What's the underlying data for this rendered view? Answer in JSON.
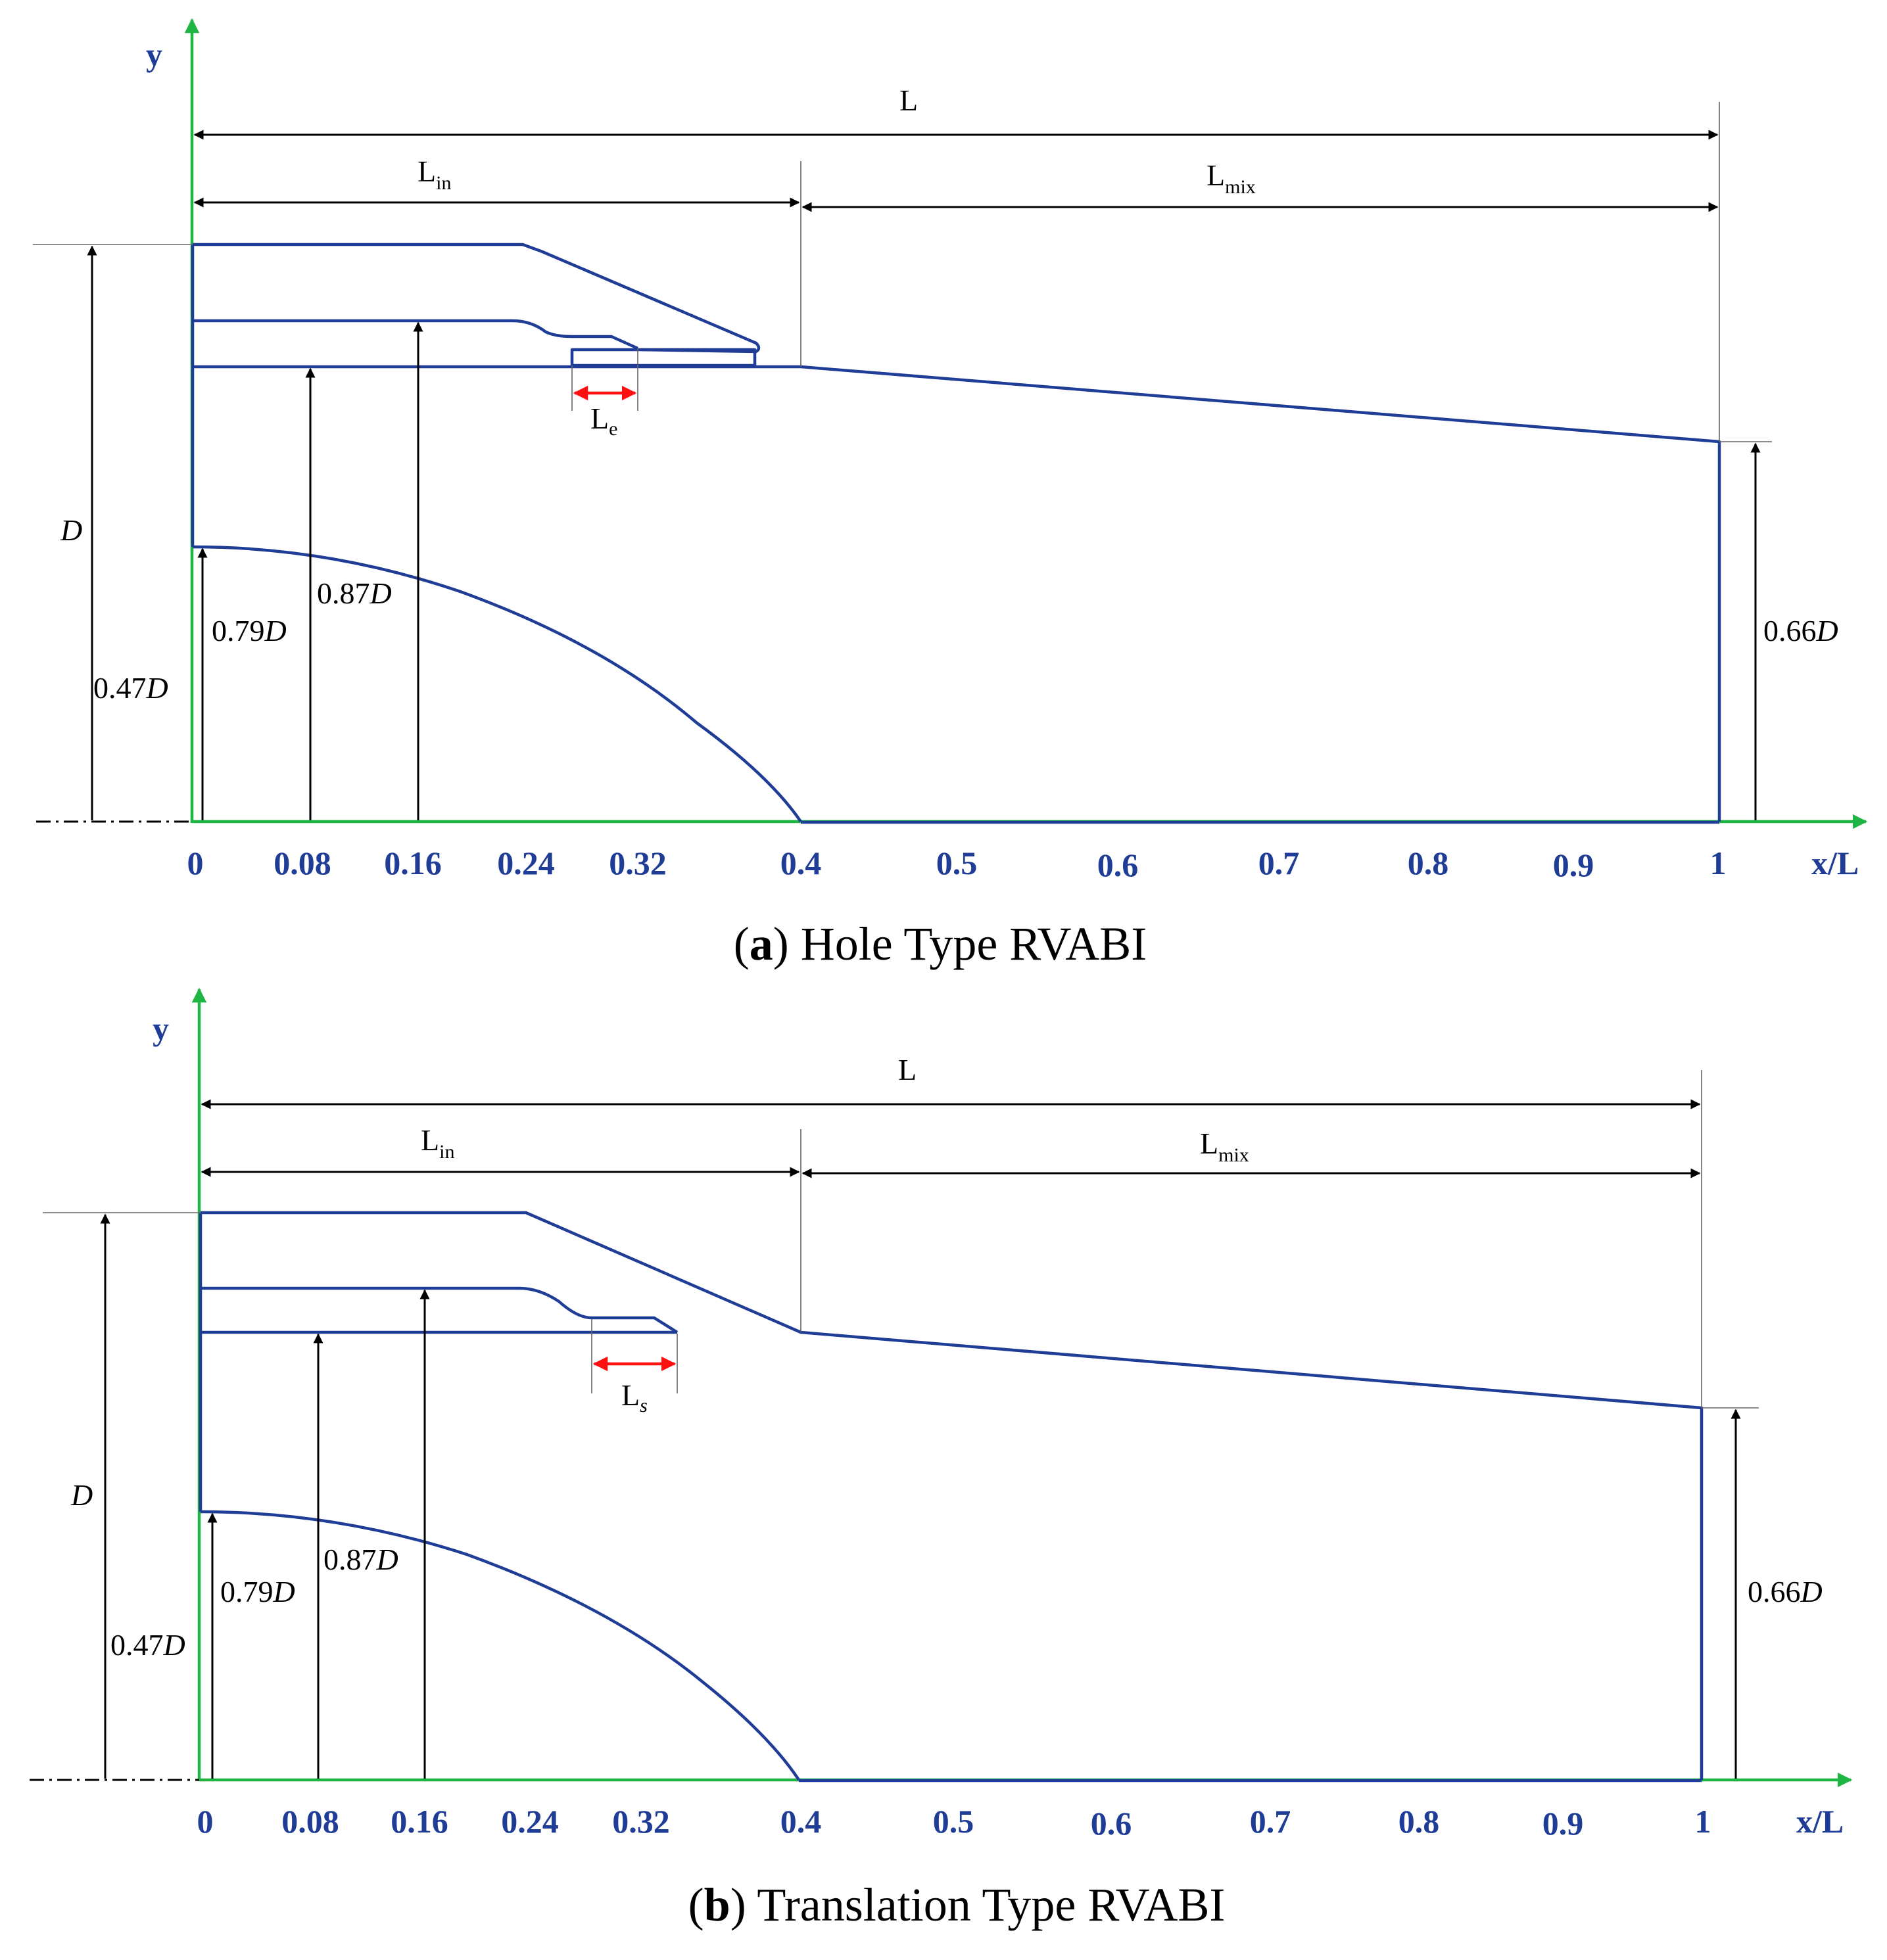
{
  "axes": {
    "y_label": "y",
    "x_label": "x/L"
  },
  "x_ticks": [
    "0",
    "0.08",
    "0.16",
    "0.24",
    "0.32",
    "0.4",
    "0.5",
    "0.6",
    "0.7",
    "0.8",
    "0.9",
    "1"
  ],
  "dimensions": {
    "total_length": "L",
    "inlet_length": "L",
    "inlet_length_sub": "in",
    "mix_length": "L",
    "mix_length_sub": "mix",
    "diameter": "D"
  },
  "radii": [
    {
      "coef": "0.47",
      "sym": "D"
    },
    {
      "coef": "0.79",
      "sym": "D"
    },
    {
      "coef": "0.87",
      "sym": "D"
    },
    {
      "coef": "0.66",
      "sym": "D"
    }
  ],
  "panels": [
    {
      "caption_letter": "a",
      "caption_title": "Hole Type RVABI",
      "feature_label": "L",
      "feature_sub": "e"
    },
    {
      "caption_letter": "b",
      "caption_title": "Translation Type RVABI",
      "feature_label": "L",
      "feature_sub": "s"
    }
  ],
  "colors": {
    "geometry": "#1f3d96",
    "axis": "#1fb544",
    "dimension": "#000000",
    "feature_arrow": "#ff1010"
  }
}
